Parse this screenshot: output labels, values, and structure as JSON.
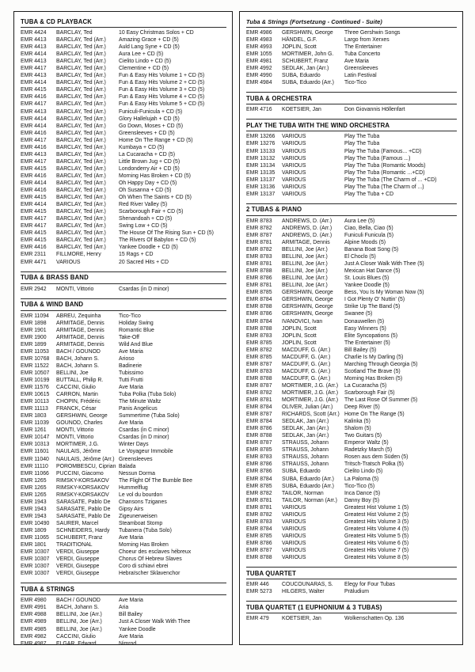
{
  "colors": {
    "box_border": "#1c1c1c",
    "text": "#141414",
    "page_background": "#fcfcfb"
  },
  "columns": [
    {
      "name": "left",
      "sections": [
        {
          "title": "TUBA & CD PLAYBACK",
          "italic": false,
          "rows": [
            [
              "EMR 4424",
              "BARCLAY, Ted",
              "10 Easy Christmas Solos + CD"
            ],
            [
              "EMR 4413",
              "BARCLAY, Ted (Arr.)",
              "Amazing Grace + CD (5)"
            ],
            [
              "EMR 4413",
              "BARCLAY, Ted (Arr.)",
              "Auld Lang Syne + CD (5)"
            ],
            [
              "EMR 4414",
              "BARCLAY, Ted (Arr.)",
              "Aura Lee + CD (5)"
            ],
            [
              "EMR 4413",
              "BARCLAY, Ted (Arr.)",
              "Cielito Lindo + CD (5)"
            ],
            [
              "EMR 4417",
              "BARCLAY, Ted (Arr.)",
              "Clementine + CD (5)"
            ],
            [
              "EMR 4413",
              "BARCLAY, Ted (Arr.)",
              "Fun & Easy Hits Volume 1 + CD (5)"
            ],
            [
              "EMR 4414",
              "BARCLAY, Ted (Arr.)",
              "Fun & Easy Hits Volume 2 + CD (5)"
            ],
            [
              "EMR 4415",
              "BARCLAY, Ted (Arr.)",
              "Fun & Easy Hits Volume 3 + CD (5)"
            ],
            [
              "EMR 4416",
              "BARCLAY, Ted (Arr.)",
              "Fun & Easy Hits Volume 4 + CD (5)"
            ],
            [
              "EMR 4417",
              "BARCLAY, Ted (Arr.)",
              "Fun & Easy Hits Volume 5 + CD (5)"
            ],
            [
              "EMR 4413",
              "BARCLAY, Ted (Arr.)",
              "Funiculi-Funicula + CD (5)"
            ],
            [
              "EMR 4414",
              "BARCLAY, Ted (Arr.)",
              "Glory Hallelujah + CD (5)"
            ],
            [
              "EMR 4414",
              "BARCLAY, Ted (Arr.)",
              "Go Down, Moses + CD (5)"
            ],
            [
              "EMR 4416",
              "BARCLAY, Ted (Arr.)",
              "Greensleeves + CD (5)"
            ],
            [
              "EMR 4417",
              "BARCLAY, Ted (Arr.)",
              "Home On The Range + CD (5)"
            ],
            [
              "EMR 4416",
              "BARCLAY, Ted (Arr.)",
              "Kumbaya + CD (5)"
            ],
            [
              "EMR 4413",
              "BARCLAY, Ted (Arr.)",
              "La Cucaracha + CD (5)"
            ],
            [
              "EMR 4417",
              "BARCLAY, Ted (Arr.)",
              "Little Brown Jug + CD (5)"
            ],
            [
              "EMR 4415",
              "BARCLAY, Ted (Arr.)",
              "Londonderry Air + CD (5)"
            ],
            [
              "EMR 4416",
              "BARCLAY, Ted (Arr.)",
              "Morning Has Broken + CD (5)"
            ],
            [
              "EMR 4414",
              "BARCLAY, Ted (Arr.)",
              "Oh Happy Day + CD (5)"
            ],
            [
              "EMR 4416",
              "BARCLAY, Ted (Arr.)",
              "Oh Susanna + CD (5)"
            ],
            [
              "EMR 4415",
              "BARCLAY, Ted (Arr.)",
              "Oh When The Saints + CD (5)"
            ],
            [
              "EMR 4414",
              "BARCLAY, Ted (Arr.)",
              "Red River Valley (5)"
            ],
            [
              "EMR 4415",
              "BARCLAY, Ted (Arr.)",
              "Scarborough Fair + CD (5)"
            ],
            [
              "EMR 4417",
              "BARCLAY, Ted (Arr.)",
              "Shenandoah + CD (5)"
            ],
            [
              "EMR 4417",
              "BARCLAY, Ted (Arr.)",
              "Swing Low + CD (5)"
            ],
            [
              "EMR 4415",
              "BARCLAY, Ted (Arr.)",
              "The House Of The Rising Sun + CD (5)"
            ],
            [
              "EMR 4415",
              "BARCLAY, Ted (Arr.)",
              "The Rivers Of Babylon + CD (5)"
            ],
            [
              "EMR 4416",
              "BARCLAY, Ted (Arr.)",
              "Yankee Doodle + CD (5)"
            ],
            [
              "EMR 2311",
              "FILLMORE, Henry",
              "15 Rags + CD"
            ],
            [
              "EMR 4471",
              "VARIOUS",
              "20 Sacred Hits + CD"
            ]
          ]
        },
        {
          "title": "TUBA & BRASS BAND",
          "italic": false,
          "rows": [
            [
              "EMR 2942",
              "MONTI, Vittorio",
              "Csardas (in D minor)"
            ]
          ]
        },
        {
          "title": "TUBA & WIND BAND",
          "italic": false,
          "rows": [
            [
              "EMR 11094",
              "ABREU, Zequinha",
              "Tico-Tico"
            ],
            [
              "EMR 1898",
              "ARMITAGE, Dennis",
              "Holiday Swing"
            ],
            [
              "EMR 1901",
              "ARMITAGE, Dennis",
              "Romantic Blue"
            ],
            [
              "EMR 1900",
              "ARMITAGE, Dennis",
              "Take-Off"
            ],
            [
              "EMR 1899",
              "ARMITAGE, Dennis",
              "Wild And Blue"
            ],
            [
              "EMR 11053",
              "BACH / GOUNOD",
              "Ave Maria"
            ],
            [
              "EMR 10768",
              "BACH, Johann S.",
              "Arioso"
            ],
            [
              "EMR 11522",
              "BACH, Johann S.",
              "Badinerie"
            ],
            [
              "EMR 10507",
              "BELLINI, Joe",
              "Tubissimo"
            ],
            [
              "EMR 10199",
              "BUTTALL, Philip R.",
              "Tutti Frutti"
            ],
            [
              "EMR 11576",
              "CACCINI, Giulio",
              "Ave Maria"
            ],
            [
              "EMR 10615",
              "CARRON, Martin",
              "Tuba Polka (Tuba Solo)"
            ],
            [
              "EMR 10113",
              "CHOPIN, Frédéric",
              "The Minute Waltz"
            ],
            [
              "EMR 11113",
              "FRANCK, César",
              "Panis Angelicus"
            ],
            [
              "EMR 1803",
              "GERSHWIN, George",
              "Summertime (Tuba Solo)"
            ],
            [
              "EMR 11039",
              "GOUNOD, Charles",
              "Ave Maria"
            ],
            [
              "EMR 1261",
              "MONTI, Vittorio",
              "Csardas (in C minor)"
            ],
            [
              "EMR 10147",
              "MONTI, Vittorio",
              "Csardas (in D minor)"
            ],
            [
              "EMR 10313",
              "MORTIMER, J.G.",
              "Winter Days"
            ],
            [
              "EMR 11601",
              "NAULAIS, Jérôme",
              "Le Voyageur Immobile"
            ],
            [
              "EMR 11040",
              "NAULAIS, Jérôme (Arr.)",
              "Greensleeves"
            ],
            [
              "EMR 11110",
              "POROMBESCU, Ciprian",
              "Balada"
            ],
            [
              "EMR 11066",
              "PUCCINI, Giacomo",
              "Nessun Dorma"
            ],
            [
              "EMR 1265",
              "RIMSKY-KORSAKOV",
              "The Flight Of The Bumble Bee"
            ],
            [
              "EMR 1265",
              "RIMSKY-KORSAKOV",
              "Hummelflug"
            ],
            [
              "EMR 1265",
              "RIMSKY-KORSAKOV",
              "Le vol du bourdon"
            ],
            [
              "EMR 1943",
              "SARASATE, Pablo De",
              "Chansons Tziganes"
            ],
            [
              "EMR 1943",
              "SARASATE, Pablo De",
              "Gipsy Airs"
            ],
            [
              "EMR 1943",
              "SARASATE, Pablo De",
              "Zigeunerweisen"
            ],
            [
              "EMR 10490",
              "SAURER, Marcel",
              "Steamboat Stomp"
            ],
            [
              "EMR 1809",
              "SCHNEIDERS, Hardy",
              "Tubanera (Tuba Solo)"
            ],
            [
              "EMR 11065",
              "SCHUBERT, Franz",
              "Ave Maria"
            ],
            [
              "EMR 1801",
              "TRADITIONAL",
              "Morning Has Broken"
            ],
            [
              "EMR 10307",
              "VERDI, Giuseppe",
              "Choeur des esclaves hébreux"
            ],
            [
              "EMR 10307",
              "VERDI, Giuseppe",
              "Chorus Of Hebrew Slaves"
            ],
            [
              "EMR 10307",
              "VERDI, Giuseppe",
              "Coro di schiavi ebrei"
            ],
            [
              "EMR 10307",
              "VERDI, Giuseppe",
              "Hebraïscher Sklavenchor"
            ]
          ]
        },
        {
          "title": "TUBA & STRINGS",
          "italic": false,
          "rows": [
            [
              "EMR 4980",
              "BACH / GOUNOD",
              "Ave Maria"
            ],
            [
              "EMR 4991",
              "BACH, Johann S.",
              "Aria"
            ],
            [
              "EMR 4988",
              "BELLINI, Joe (Arr.)",
              "Bill Bailey"
            ],
            [
              "EMR 4989",
              "BELLINI, Joe (Arr.)",
              "Just A Closer Walk With Thee"
            ],
            [
              "EMR 4985",
              "BELLINI, Joe (Arr.)",
              "Yankee Doodle"
            ],
            [
              "EMR 4982",
              "CACCINI, Giulio",
              "Ave Maria"
            ],
            [
              "EMR 4987",
              "ELGAR, Edward",
              "Nimrod"
            ]
          ]
        }
      ]
    },
    {
      "name": "right",
      "sections": [
        {
          "title": "Tuba & Strings (Fortsetzung - Continued - Suite)",
          "italic": true,
          "rows": [
            [
              "EMR 4986",
              "GERSHWIN, George",
              "Three Gershwin Songs"
            ],
            [
              "EMR 4983",
              "HÄNDEL, G.F.",
              "Largo from Xerxes"
            ],
            [
              "EMR 4993",
              "JOPLIN, Scott",
              "The Entertainer"
            ],
            [
              "EMR 1055",
              "MORTIMER, John G.",
              "Tuba Concerto"
            ],
            [
              "EMR 4981",
              "SCHUBERT, Franz",
              "Ave Maria"
            ],
            [
              "EMR 4992",
              "SEDLAK, Jan (Arr.)",
              "Greensleeves"
            ],
            [
              "EMR 4990",
              "SUBA, Eduardo",
              "Latin Festival"
            ],
            [
              "EMR 4984",
              "SUBA, Eduardo (Arr.)",
              "Tico-Tico"
            ]
          ]
        },
        {
          "title": "TUBA & ORCHESTRA",
          "italic": false,
          "rows": [
            [
              "EMR 4716",
              "KOETSIER, Jan",
              "Don Giovannis Höllenfart"
            ]
          ]
        },
        {
          "title": "PLAY THE TUBA WITH THE WIND ORCHESTRA",
          "italic": false,
          "rows": [
            [
              "EMR 13266",
              "VARIOUS",
              "Play The Tuba"
            ],
            [
              "EMR 13276",
              "VARIOUS",
              "Play The Tuba"
            ],
            [
              "EMR 13133",
              "VARIOUS",
              "Play The Tuba (Famous... +CD)"
            ],
            [
              "EMR 13132",
              "VARIOUS",
              "Play The Tuba (Famous ...)"
            ],
            [
              "EMR 13134",
              "VARIOUS",
              "Play The Tuba (Romantic Moods)"
            ],
            [
              "EMR 13135",
              "VARIOUS",
              "Play The Tuba (Romantic ...+CD)"
            ],
            [
              "EMR 13137",
              "VARIOUS",
              "Play The Tuba (The Charm of ... +CD)"
            ],
            [
              "EMR 13136",
              "VARIOUS",
              "Play The Tuba (The Charm of ...)"
            ],
            [
              "EMR 13137",
              "VARIOUS",
              "Play The Tuba + CD"
            ]
          ]
        },
        {
          "title": "2 TUBAS & PIANO",
          "italic": false,
          "rows": [
            [
              "EMR 8783",
              "ANDREWS, D. (Arr.)",
              "Aura Lee (5)"
            ],
            [
              "EMR 8782",
              "ANDREWS, D. (Arr.)",
              "Ciao, Bella, Ciao (5)"
            ],
            [
              "EMR 8787",
              "ANDREWS, D. (Arr.)",
              "Funiculi Funicula (5)"
            ],
            [
              "EMR 8781",
              "ARMITAGE, Dennis",
              "Alpine Moods (5)"
            ],
            [
              "EMR 8782",
              "BELLINI, Joe (Arr.)",
              "Banana Boat Song (5)"
            ],
            [
              "EMR 8783",
              "BELLINI, Joe (Arr.)",
              "El Choclo (5)"
            ],
            [
              "EMR 8781",
              "BELLINI, Joe (Arr.)",
              "Just A Closer Walk With Thee (5)"
            ],
            [
              "EMR 8788",
              "BELLINI, Joe (Arr.)",
              "Mexican Hat Dance (5)"
            ],
            [
              "EMR 8786",
              "BELLINI, Joe (Arr.)",
              "St. Louis Blues (5)"
            ],
            [
              "EMR 8781",
              "BELLINI, Joe (Arr.)",
              "Yankee Doodle (5)"
            ],
            [
              "EMR 8785",
              "GERSHWIN, George",
              "Bess, You Is My Woman Now (5)"
            ],
            [
              "EMR 8784",
              "GERSHWIN, George",
              "I Got Plenty O' Nuttin' (5)"
            ],
            [
              "EMR 8788",
              "GERSHWIN, George",
              "Strike Up The Band (5)"
            ],
            [
              "EMR 8786",
              "GERSHWIN, George",
              "Swanee (5)"
            ],
            [
              "EMR 8784",
              "IVANOVICI, Ivan",
              "Donauwellen (5)"
            ],
            [
              "EMR 8788",
              "JOPLIN, Scott",
              "Easy Winners (5)"
            ],
            [
              "EMR 8783",
              "JOPLIN, Scott",
              "Elite Syncopations (5)"
            ],
            [
              "EMR 8785",
              "JOPLIN, Scott",
              "The Entertainer (5)"
            ],
            [
              "EMR 8782",
              "MACDUFF, G. (Arr.)",
              "Bill Bailey (5)"
            ],
            [
              "EMR 8785",
              "MACDUFF, G. (Arr.)",
              "Charlie Is My Darling (5)"
            ],
            [
              "EMR 8787",
              "MACDUFF, G. (Arr.)",
              "Marching Through Georgia (5)"
            ],
            [
              "EMR 8783",
              "MACDUFF, G. (Arr.)",
              "Scotland The Brave (5)"
            ],
            [
              "EMR 8788",
              "MACDUFF, G. (Arr.)",
              "Morning Has Broken (5)"
            ],
            [
              "EMR 8787",
              "MORTIMER, J.G. (Arr.)",
              "La Cucaracha (5)"
            ],
            [
              "EMR 8782",
              "MORTIMER, J.G. (Arr.)",
              "Scarborough Fair (5)"
            ],
            [
              "EMR 8781",
              "MORTIMER, J.G. (Arr.)",
              "The Last Rose Of Summer (5)"
            ],
            [
              "EMR 8784",
              "OLIVER, Julian (Arr.)",
              "Deep River (5)"
            ],
            [
              "EMR 8787",
              "RICHARDS, Scott (Arr.)",
              "Home On The Range (5)"
            ],
            [
              "EMR 8784",
              "SEDLAK, Jan (Arr.)",
              "Kalinka (5)"
            ],
            [
              "EMR 8786",
              "SEDLAK, Jan (Arr.)",
              "Shalom (5)"
            ],
            [
              "EMR 8788",
              "SEDLAK, Jan (Arr.)",
              "Two Guitars (5)"
            ],
            [
              "EMR 8787",
              "STRAUSS, Johann",
              "Emperor Waltz (5)"
            ],
            [
              "EMR 8785",
              "STRAUSS, Johann",
              "Radetzky March (5)"
            ],
            [
              "EMR 8783",
              "STRAUSS, Johann",
              "Rosen aus dem Süden (5)"
            ],
            [
              "EMR 8786",
              "STRAUSS, Johann",
              "Tritsch-Tratsch Polka (5)"
            ],
            [
              "EMR 8786",
              "SUBA, Eduardo",
              "Cielito Lindo (5)"
            ],
            [
              "EMR 8784",
              "SUBA, Eduardo (Arr.)",
              "La Paloma (5)"
            ],
            [
              "EMR 8785",
              "SUBA, Eduardo (Arr.)",
              "Tico-Tico (5)"
            ],
            [
              "EMR 8782",
              "TAILOR, Norman",
              "Inca Dance (5)"
            ],
            [
              "EMR 8781",
              "TAILOR, Norman (Arr.)",
              "Danny Boy (5)"
            ],
            [
              "EMR 8781",
              "VARIOUS",
              "Greatest Hist Volume 1 (5)"
            ],
            [
              "EMR 8782",
              "VARIOUS",
              "Greatest Hist Volume 2 (5)"
            ],
            [
              "EMR 8783",
              "VARIOUS",
              "Greatest Hits Volume 3 (5)"
            ],
            [
              "EMR 8784",
              "VARIOUS",
              "Greatest Hits Volume 4 (5)"
            ],
            [
              "EMR 8785",
              "VARIOUS",
              "Greatest Hits Volume 5 (5)"
            ],
            [
              "EMR 8786",
              "VARIOUS",
              "Greatest Hits Volume 6 (5)"
            ],
            [
              "EMR 8787",
              "VARIOUS",
              "Greatest Hits Volume 7 (5)"
            ],
            [
              "EMR 8788",
              "VARIOUS",
              "Greatest Hits Volume 8 (5)"
            ]
          ]
        },
        {
          "title": "TUBA QUARTET",
          "italic": false,
          "rows": [
            [
              "EMR 446",
              "COUCOUNARAS, S.",
              "Elegy for Four Tubas"
            ],
            [
              "EMR 5273",
              "HILGERS, Walter",
              "Präludium"
            ]
          ]
        },
        {
          "title": "TUBA QUARTET (1 EUPHONIUM & 3 TUBAS)",
          "italic": false,
          "rows": [
            [
              "EMR 479",
              "KOETSIER, Jan",
              "Wolkenschatten Op. 136"
            ]
          ]
        }
      ]
    }
  ]
}
